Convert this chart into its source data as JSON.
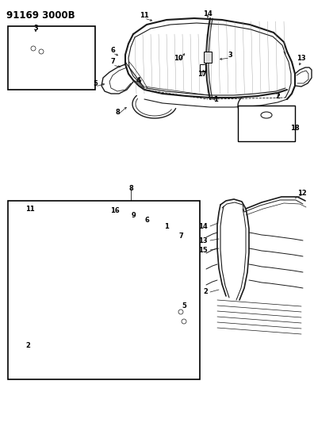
{
  "title": "91169 3000B",
  "bg_color": "#f5f5f0",
  "line_color": "#1a1a1a",
  "fig_width": 3.96,
  "fig_height": 5.33,
  "dpi": 100
}
